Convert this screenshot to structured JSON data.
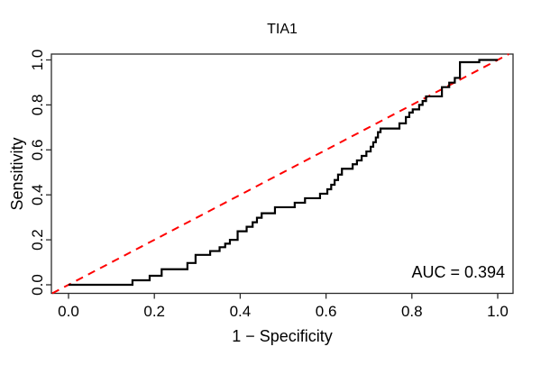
{
  "title": "TIA1",
  "annotation": {
    "auc_label": "AUC = 0.394"
  },
  "colors": {
    "roc_curve": "#000000",
    "reference_line": "#ff0000",
    "axis": "#2b2b2b",
    "background": "#ffffff"
  },
  "chart_data": {
    "type": "line",
    "subtype": "roc-step-curve",
    "title": "TIA1",
    "xlabel": "1 − Specificity",
    "ylabel": "Sensitivity",
    "xlim": [
      0,
      1
    ],
    "ylim": [
      0,
      1
    ],
    "grid": false,
    "legend": "none",
    "auc": 0.394,
    "x_ticks": {
      "values": [
        0.0,
        0.2,
        0.4,
        0.6,
        0.8,
        1.0
      ],
      "labels": [
        "0.0",
        "0.2",
        "0.4",
        "0.6",
        "0.8",
        "1.0"
      ]
    },
    "y_ticks": {
      "values": [
        0.0,
        0.2,
        0.4,
        0.6,
        0.8,
        1.0
      ],
      "labels": [
        "0.0",
        "0.2",
        "0.4",
        "0.6",
        "0.8",
        "1.0"
      ]
    },
    "annotations": [
      {
        "text": "AUC = 0.394",
        "anchor": "bottom-right"
      }
    ],
    "series": [
      {
        "name": "ROC curve",
        "draw": "step",
        "color": "#000000",
        "line_style": "solid",
        "line_width": 2.2,
        "points": [
          [
            0.0,
            0.0
          ],
          [
            0.149,
            0.02
          ],
          [
            0.189,
            0.04
          ],
          [
            0.217,
            0.069
          ],
          [
            0.277,
            0.097
          ],
          [
            0.296,
            0.133
          ],
          [
            0.33,
            0.15
          ],
          [
            0.352,
            0.167
          ],
          [
            0.365,
            0.183
          ],
          [
            0.376,
            0.2
          ],
          [
            0.394,
            0.238
          ],
          [
            0.415,
            0.258
          ],
          [
            0.429,
            0.278
          ],
          [
            0.439,
            0.298
          ],
          [
            0.45,
            0.318
          ],
          [
            0.481,
            0.345
          ],
          [
            0.527,
            0.365
          ],
          [
            0.551,
            0.385
          ],
          [
            0.586,
            0.405
          ],
          [
            0.603,
            0.425
          ],
          [
            0.612,
            0.445
          ],
          [
            0.62,
            0.466
          ],
          [
            0.628,
            0.49
          ],
          [
            0.637,
            0.516
          ],
          [
            0.662,
            0.536
          ],
          [
            0.672,
            0.553
          ],
          [
            0.683,
            0.573
          ],
          [
            0.694,
            0.593
          ],
          [
            0.704,
            0.614
          ],
          [
            0.71,
            0.634
          ],
          [
            0.716,
            0.655
          ],
          [
            0.721,
            0.679
          ],
          [
            0.727,
            0.695
          ],
          [
            0.771,
            0.718
          ],
          [
            0.786,
            0.746
          ],
          [
            0.794,
            0.766
          ],
          [
            0.802,
            0.78
          ],
          [
            0.817,
            0.8
          ],
          [
            0.825,
            0.817
          ],
          [
            0.833,
            0.838
          ],
          [
            0.87,
            0.879
          ],
          [
            0.887,
            0.899
          ],
          [
            0.9,
            0.92
          ],
          [
            0.912,
            0.99
          ],
          [
            0.957,
            1.0
          ],
          [
            1.0,
            1.0
          ]
        ]
      },
      {
        "name": "chance reference line",
        "draw": "abline",
        "color": "#ff0000",
        "line_style": "dashed",
        "line_width": 2,
        "points": [
          [
            0,
            0
          ],
          [
            1,
            1
          ]
        ]
      }
    ]
  }
}
